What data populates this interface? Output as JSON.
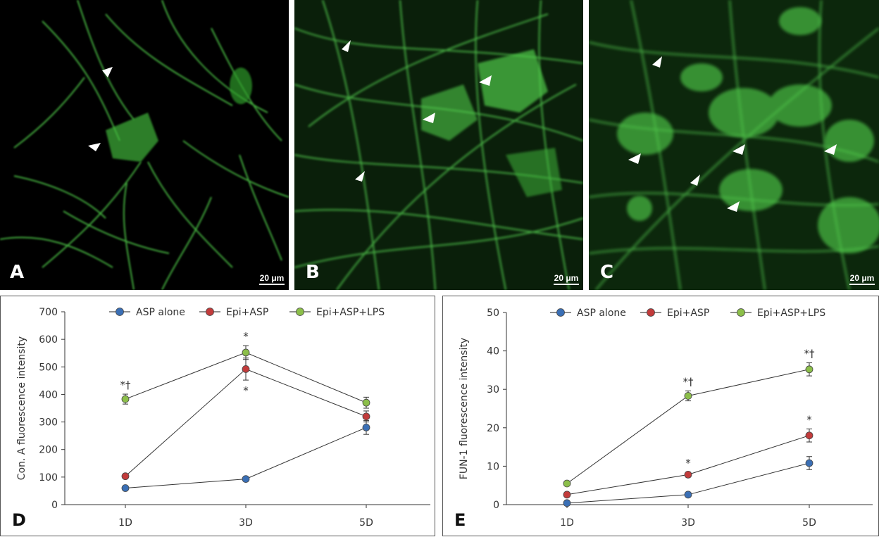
{
  "panels": [
    {
      "letter": "A",
      "scale": "20 μm"
    },
    {
      "letter": "B",
      "scale": "20 μm"
    },
    {
      "letter": "C",
      "scale": "20 μm"
    }
  ],
  "chart_data": [
    {
      "panel": "D",
      "type": "line",
      "ylabel": "Con. A fluorescence intensity",
      "xlabel": "",
      "categories": [
        "1D",
        "3D",
        "5D"
      ],
      "ylim": [
        0,
        700
      ],
      "yticks": [
        0,
        100,
        200,
        300,
        400,
        500,
        600,
        700
      ],
      "legend": "top",
      "series": [
        {
          "name": "ASP alone",
          "color": "#3a6fb5",
          "values": [
            60,
            93,
            280
          ],
          "err": [
            5,
            8,
            25
          ],
          "marks": [
            "",
            "",
            ""
          ]
        },
        {
          "name": "Epi+ASP",
          "color": "#c23b3b",
          "values": [
            103,
            492,
            320
          ],
          "err": [
            6,
            40,
            20
          ],
          "marks": [
            "",
            "*",
            ""
          ]
        },
        {
          "name": "Epi+ASP+LPS",
          "color": "#8cbf4a",
          "values": [
            383,
            552,
            370
          ],
          "err": [
            18,
            25,
            20
          ],
          "marks": [
            "*†",
            "*",
            ""
          ]
        }
      ]
    },
    {
      "panel": "E",
      "type": "line",
      "ylabel": "FUN-1 fluorescence intensity",
      "xlabel": "",
      "categories": [
        "1D",
        "3D",
        "5D"
      ],
      "ylim": [
        0,
        50
      ],
      "yticks": [
        0,
        10,
        20,
        30,
        40,
        50
      ],
      "legend": "top",
      "series": [
        {
          "name": "ASP alone",
          "color": "#3a6fb5",
          "values": [
            0.4,
            2.6,
            10.8
          ],
          "err": [
            0.2,
            0.3,
            1.7
          ],
          "marks": [
            "",
            "",
            ""
          ]
        },
        {
          "name": "Epi+ASP",
          "color": "#c23b3b",
          "values": [
            2.6,
            7.8,
            18
          ],
          "err": [
            0.3,
            0.6,
            1.7
          ],
          "marks": [
            "",
            "*",
            "*"
          ]
        },
        {
          "name": "Epi+ASP+LPS",
          "color": "#8cbf4a",
          "values": [
            5.5,
            28.3,
            35.2
          ],
          "err": [
            0.4,
            1.3,
            1.7
          ],
          "marks": [
            "",
            "*†",
            "*†"
          ]
        }
      ]
    }
  ]
}
